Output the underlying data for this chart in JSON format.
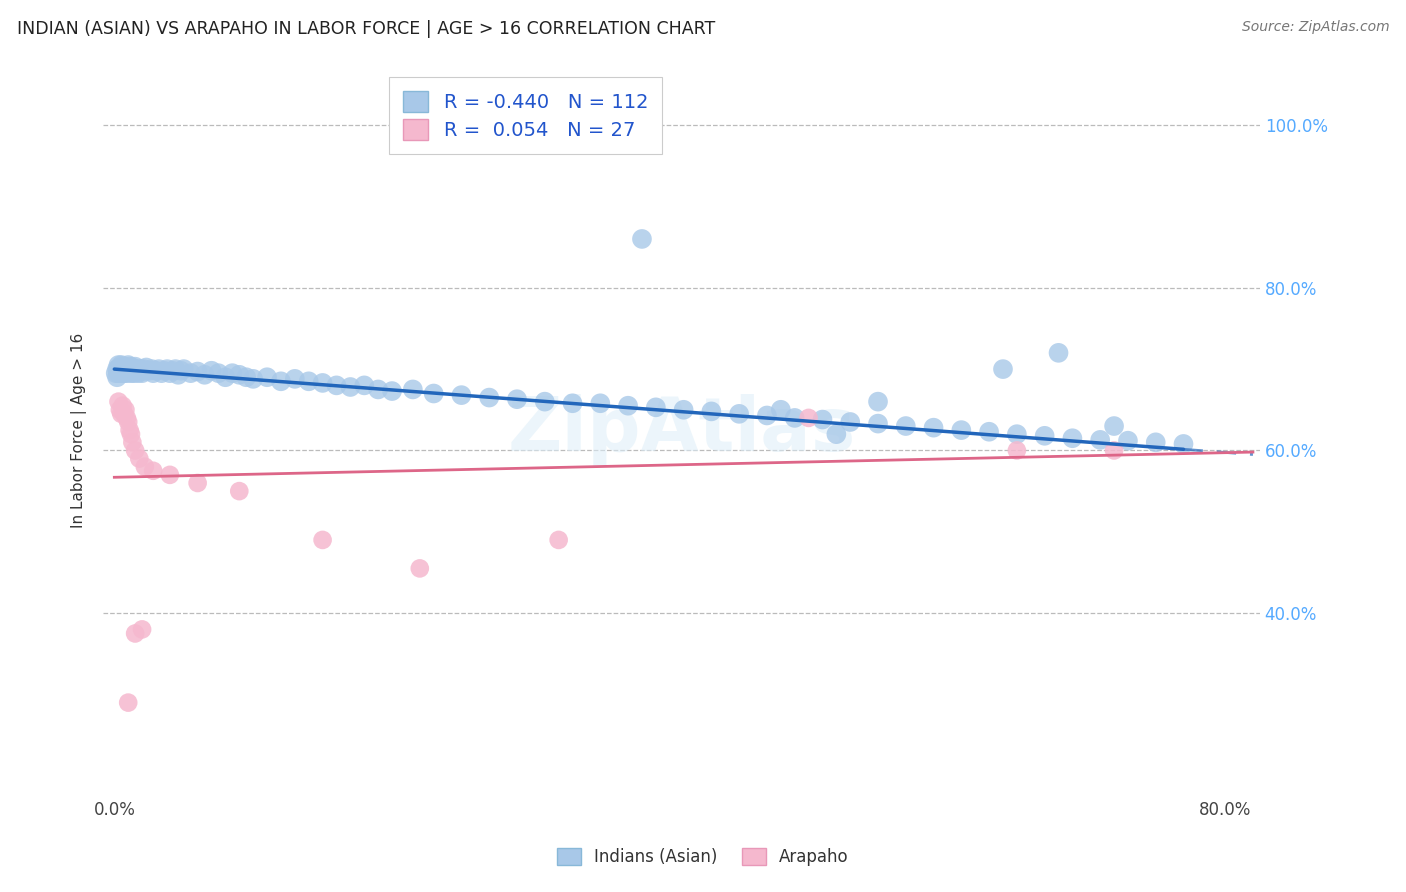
{
  "title": "INDIAN (ASIAN) VS ARAPAHO IN LABOR FORCE | AGE > 16 CORRELATION CHART",
  "source": "Source: ZipAtlas.com",
  "ylabel": "In Labor Force | Age > 16",
  "xlim_min": -0.008,
  "xlim_max": 0.825,
  "ylim_min": 0.175,
  "ylim_max": 1.075,
  "x_ticks": [
    0.0,
    0.1,
    0.2,
    0.3,
    0.4,
    0.5,
    0.6,
    0.7,
    0.8
  ],
  "x_ticklabels": [
    "0.0%",
    "",
    "",
    "",
    "",
    "",
    "",
    "",
    "80.0%"
  ],
  "y_ticks": [
    0.4,
    0.6,
    0.8,
    1.0
  ],
  "y_ticklabels": [
    "40.0%",
    "60.0%",
    "80.0%",
    "100.0%"
  ],
  "blue_R": -0.44,
  "blue_N": 112,
  "pink_R": 0.054,
  "pink_N": 27,
  "blue_color": "#a8c8e8",
  "pink_color": "#f5b8ce",
  "blue_line_color": "#2266bb",
  "pink_line_color": "#dd6688",
  "legend_blue": "Indians (Asian)",
  "legend_pink": "Arapaho",
  "watermark_text": "ZipAtlas",
  "blue_x": [
    0.001,
    0.002,
    0.002,
    0.003,
    0.003,
    0.003,
    0.004,
    0.004,
    0.004,
    0.005,
    0.005,
    0.005,
    0.006,
    0.006,
    0.006,
    0.007,
    0.007,
    0.007,
    0.008,
    0.008,
    0.009,
    0.009,
    0.01,
    0.01,
    0.011,
    0.011,
    0.012,
    0.012,
    0.013,
    0.013,
    0.014,
    0.014,
    0.015,
    0.015,
    0.016,
    0.017,
    0.018,
    0.019,
    0.02,
    0.021,
    0.022,
    0.023,
    0.025,
    0.027,
    0.028,
    0.03,
    0.032,
    0.034,
    0.036,
    0.038,
    0.04,
    0.042,
    0.044,
    0.046,
    0.048,
    0.05,
    0.055,
    0.06,
    0.065,
    0.07,
    0.075,
    0.08,
    0.085,
    0.09,
    0.095,
    0.1,
    0.11,
    0.12,
    0.13,
    0.14,
    0.15,
    0.16,
    0.17,
    0.18,
    0.19,
    0.2,
    0.215,
    0.23,
    0.25,
    0.27,
    0.29,
    0.31,
    0.33,
    0.35,
    0.37,
    0.39,
    0.41,
    0.43,
    0.45,
    0.47,
    0.49,
    0.51,
    0.53,
    0.55,
    0.57,
    0.59,
    0.61,
    0.63,
    0.65,
    0.67,
    0.69,
    0.71,
    0.73,
    0.75,
    0.77,
    0.38,
    0.72,
    0.64,
    0.55,
    0.68,
    0.48,
    0.52
  ],
  "blue_y": [
    0.695,
    0.7,
    0.69,
    0.7,
    0.695,
    0.705,
    0.698,
    0.702,
    0.695,
    0.7,
    0.695,
    0.705,
    0.698,
    0.702,
    0.695,
    0.7,
    0.695,
    0.703,
    0.698,
    0.702,
    0.695,
    0.7,
    0.698,
    0.705,
    0.698,
    0.703,
    0.7,
    0.695,
    0.698,
    0.702,
    0.7,
    0.695,
    0.698,
    0.703,
    0.7,
    0.695,
    0.698,
    0.7,
    0.695,
    0.7,
    0.698,
    0.702,
    0.698,
    0.7,
    0.695,
    0.698,
    0.7,
    0.695,
    0.698,
    0.7,
    0.695,
    0.698,
    0.7,
    0.693,
    0.698,
    0.7,
    0.695,
    0.697,
    0.693,
    0.698,
    0.695,
    0.69,
    0.695,
    0.693,
    0.69,
    0.688,
    0.69,
    0.685,
    0.688,
    0.685,
    0.683,
    0.68,
    0.678,
    0.68,
    0.675,
    0.673,
    0.675,
    0.67,
    0.668,
    0.665,
    0.663,
    0.66,
    0.658,
    0.658,
    0.655,
    0.653,
    0.65,
    0.648,
    0.645,
    0.643,
    0.64,
    0.638,
    0.635,
    0.633,
    0.63,
    0.628,
    0.625,
    0.623,
    0.62,
    0.618,
    0.615,
    0.613,
    0.612,
    0.61,
    0.608,
    0.86,
    0.63,
    0.7,
    0.66,
    0.72,
    0.65,
    0.62
  ],
  "pink_x": [
    0.003,
    0.004,
    0.005,
    0.006,
    0.007,
    0.008,
    0.009,
    0.01,
    0.011,
    0.012,
    0.013,
    0.015,
    0.018,
    0.022,
    0.028,
    0.04,
    0.06,
    0.09,
    0.15,
    0.22,
    0.32,
    0.5,
    0.65,
    0.72,
    0.01,
    0.015,
    0.02
  ],
  "pink_y": [
    0.66,
    0.65,
    0.645,
    0.655,
    0.645,
    0.65,
    0.64,
    0.635,
    0.625,
    0.62,
    0.61,
    0.6,
    0.59,
    0.58,
    0.575,
    0.57,
    0.56,
    0.55,
    0.49,
    0.455,
    0.49,
    0.64,
    0.6,
    0.6,
    0.29,
    0.375,
    0.38
  ],
  "blue_trend_x0": 0.0,
  "blue_trend_x_solid_end": 0.77,
  "blue_trend_x_end": 0.82,
  "blue_trend_y0": 0.7,
  "blue_trend_y_end": 0.595,
  "pink_trend_y0": 0.567,
  "pink_trend_y_end": 0.598
}
